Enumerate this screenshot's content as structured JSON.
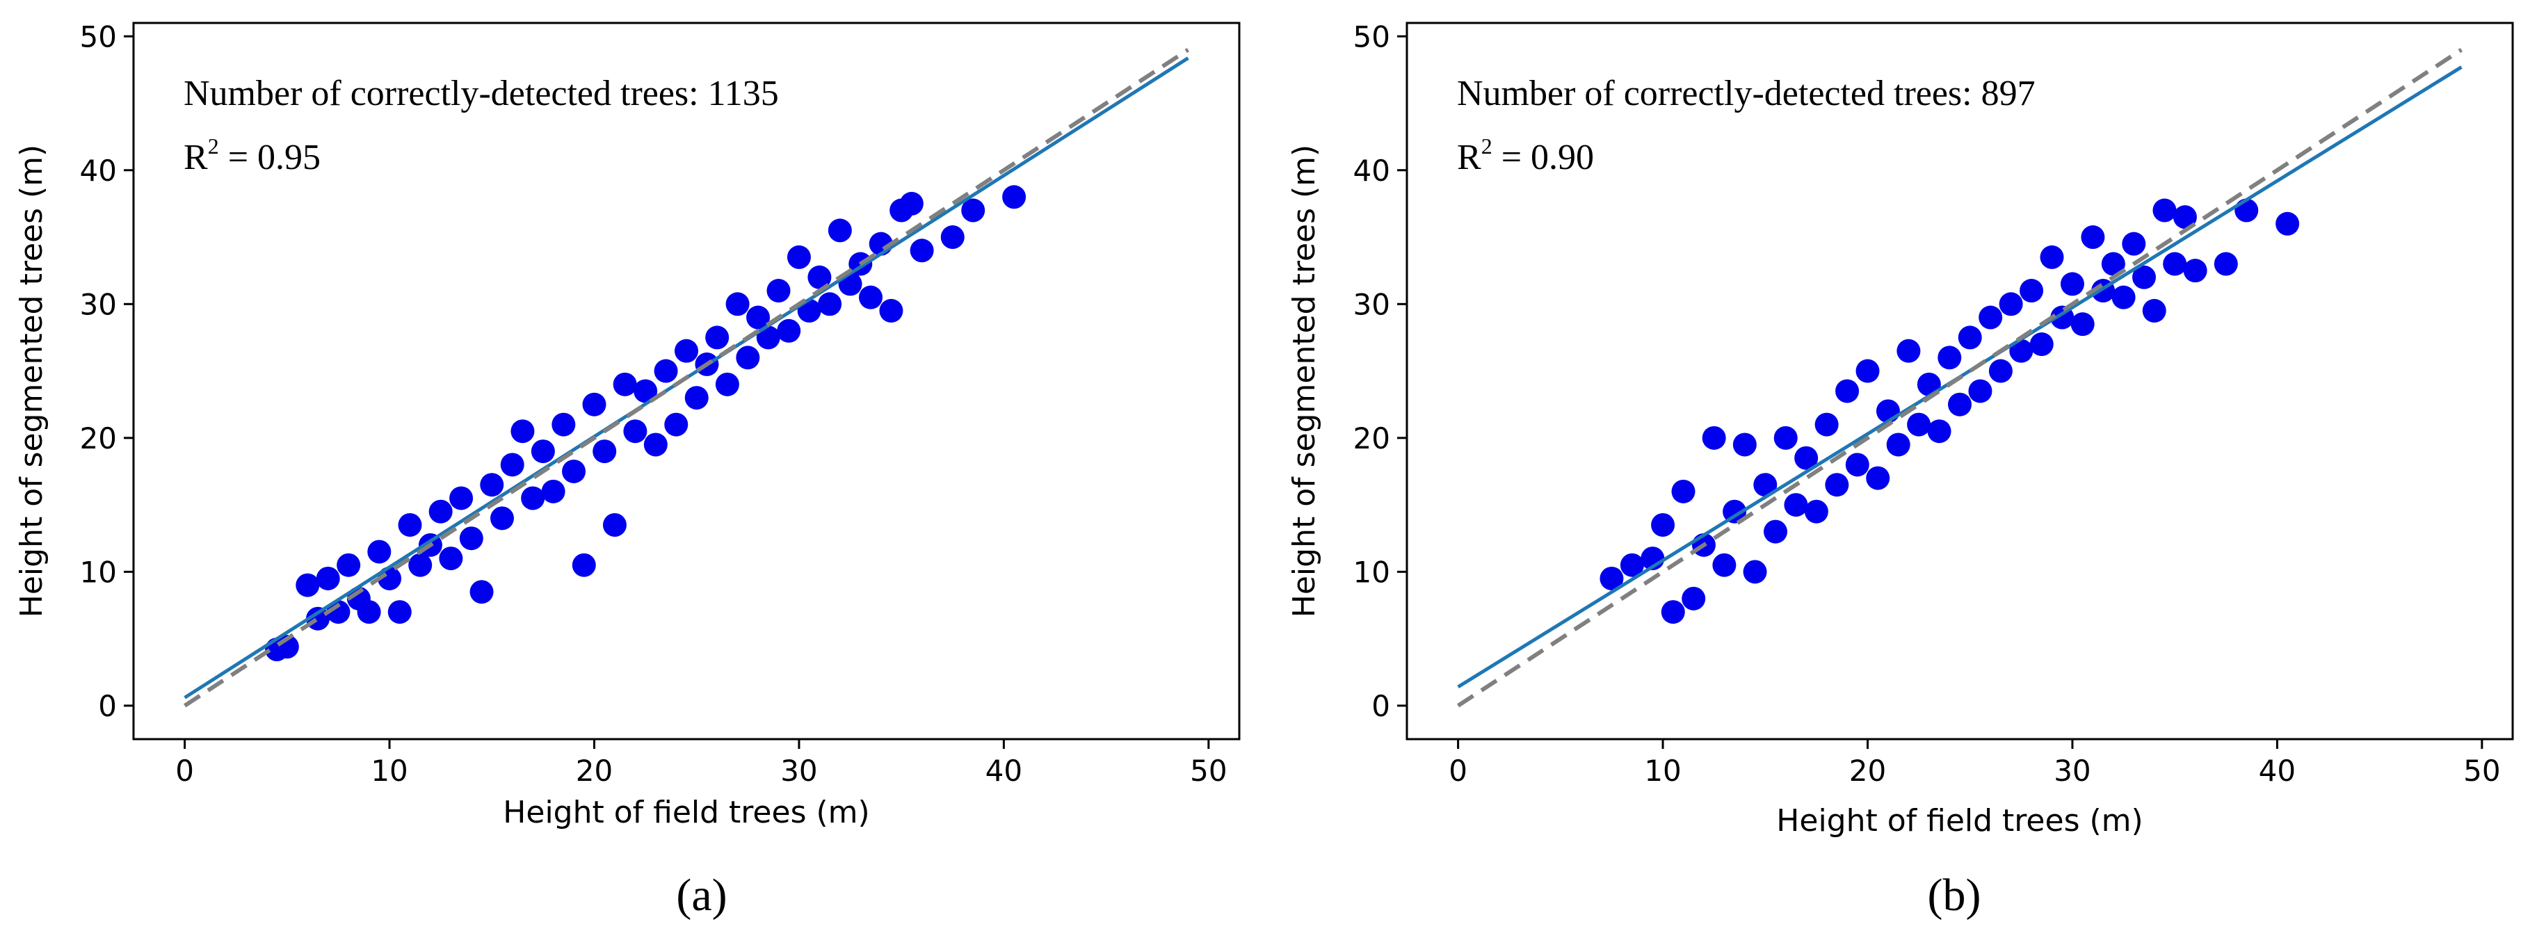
{
  "figure": {
    "colors": {
      "points": "#0000ee",
      "fit_line": "#1f77b4",
      "identity_line": "#808080",
      "axes": "#000000"
    }
  },
  "chart_data": [
    {
      "id": "a",
      "type": "scatter",
      "caption": "(a)",
      "xlabel": "Height of field trees (m)",
      "ylabel": "Height of segmented trees (m)",
      "xlim": [
        -2.5,
        51.5
      ],
      "ylim": [
        -2.5,
        51
      ],
      "xticks": [
        0,
        10,
        20,
        30,
        40,
        50
      ],
      "yticks": [
        0,
        10,
        20,
        30,
        40,
        50
      ],
      "annotation_count": "Number of correctly-detected trees: 1135",
      "annotation_r2_prefix": "R",
      "annotation_r2_sup": "2",
      "annotation_r2_value": " = 0.95",
      "fit_line": {
        "slope": 0.975,
        "intercept": 0.6
      },
      "identity_line": {
        "slope": 1.0,
        "intercept": 0.0
      },
      "x_range": [
        0,
        49
      ],
      "points": [
        [
          4.5,
          4.2
        ],
        [
          5.0,
          4.4
        ],
        [
          6.0,
          9.0
        ],
        [
          6.5,
          6.5
        ],
        [
          7.0,
          9.5
        ],
        [
          7.5,
          7.0
        ],
        [
          8.0,
          10.5
        ],
        [
          8.5,
          8.0
        ],
        [
          9.0,
          7.0
        ],
        [
          9.5,
          11.5
        ],
        [
          10.0,
          9.5
        ],
        [
          10.5,
          7.0
        ],
        [
          11.0,
          13.5
        ],
        [
          11.5,
          10.5
        ],
        [
          12.0,
          12.0
        ],
        [
          12.5,
          14.5
        ],
        [
          13.0,
          11.0
        ],
        [
          13.5,
          15.5
        ],
        [
          14.0,
          12.5
        ],
        [
          14.5,
          8.5
        ],
        [
          15.0,
          16.5
        ],
        [
          15.5,
          14.0
        ],
        [
          16.0,
          18.0
        ],
        [
          16.5,
          20.5
        ],
        [
          17.0,
          15.5
        ],
        [
          17.5,
          19.0
        ],
        [
          18.0,
          16.0
        ],
        [
          18.5,
          21.0
        ],
        [
          19.0,
          17.5
        ],
        [
          19.5,
          10.5
        ],
        [
          20.0,
          22.5
        ],
        [
          20.5,
          19.0
        ],
        [
          21.0,
          13.5
        ],
        [
          21.5,
          24.0
        ],
        [
          22.0,
          20.5
        ],
        [
          22.5,
          23.5
        ],
        [
          23.0,
          19.5
        ],
        [
          23.5,
          25.0
        ],
        [
          24.0,
          21.0
        ],
        [
          24.5,
          26.5
        ],
        [
          25.0,
          23.0
        ],
        [
          25.5,
          25.5
        ],
        [
          26.0,
          27.5
        ],
        [
          26.5,
          24.0
        ],
        [
          27.0,
          30.0
        ],
        [
          27.5,
          26.0
        ],
        [
          28.0,
          29.0
        ],
        [
          28.5,
          27.5
        ],
        [
          29.0,
          31.0
        ],
        [
          29.5,
          28.0
        ],
        [
          30.0,
          33.5
        ],
        [
          30.5,
          29.5
        ],
        [
          31.0,
          32.0
        ],
        [
          31.5,
          30.0
        ],
        [
          32.0,
          35.5
        ],
        [
          32.5,
          31.5
        ],
        [
          33.0,
          33.0
        ],
        [
          33.5,
          30.5
        ],
        [
          34.0,
          34.5
        ],
        [
          34.5,
          29.5
        ],
        [
          35.0,
          37.0
        ],
        [
          35.5,
          37.5
        ],
        [
          36.0,
          34.0
        ],
        [
          37.5,
          35.0
        ],
        [
          38.5,
          37.0
        ],
        [
          40.5,
          38.0
        ]
      ]
    },
    {
      "id": "b",
      "type": "scatter",
      "caption": "(b)",
      "xlabel": "Height of field trees (m)",
      "ylabel": "Height of segmented trees (m)",
      "xlim": [
        -2.5,
        51.5
      ],
      "ylim": [
        -2.5,
        51
      ],
      "xticks": [
        0,
        10,
        20,
        30,
        40,
        50
      ],
      "yticks": [
        0,
        10,
        20,
        30,
        40,
        50
      ],
      "annotation_count": "Number of correctly-detected trees: 897",
      "annotation_r2_prefix": "R",
      "annotation_r2_sup": "2",
      "annotation_r2_value": " = 0.90",
      "fit_line": {
        "slope": 0.945,
        "intercept": 1.4
      },
      "identity_line": {
        "slope": 1.0,
        "intercept": 0.0
      },
      "x_range": [
        0,
        49
      ],
      "points": [
        [
          7.5,
          9.5
        ],
        [
          8.5,
          10.5
        ],
        [
          9.5,
          11.0
        ],
        [
          10.0,
          13.5
        ],
        [
          10.5,
          7.0
        ],
        [
          11.0,
          16.0
        ],
        [
          11.5,
          8.0
        ],
        [
          12.0,
          12.0
        ],
        [
          12.5,
          20.0
        ],
        [
          13.0,
          10.5
        ],
        [
          13.5,
          14.5
        ],
        [
          14.0,
          19.5
        ],
        [
          14.5,
          10.0
        ],
        [
          15.0,
          16.5
        ],
        [
          15.5,
          13.0
        ],
        [
          16.0,
          20.0
        ],
        [
          16.5,
          15.0
        ],
        [
          17.0,
          18.5
        ],
        [
          17.5,
          14.5
        ],
        [
          18.0,
          21.0
        ],
        [
          18.5,
          16.5
        ],
        [
          19.0,
          23.5
        ],
        [
          19.5,
          18.0
        ],
        [
          20.0,
          25.0
        ],
        [
          20.5,
          17.0
        ],
        [
          21.0,
          22.0
        ],
        [
          21.5,
          19.5
        ],
        [
          22.0,
          26.5
        ],
        [
          22.5,
          21.0
        ],
        [
          23.0,
          24.0
        ],
        [
          23.5,
          20.5
        ],
        [
          24.0,
          26.0
        ],
        [
          24.5,
          22.5
        ],
        [
          25.0,
          27.5
        ],
        [
          25.5,
          23.5
        ],
        [
          26.0,
          29.0
        ],
        [
          26.5,
          25.0
        ],
        [
          27.0,
          30.0
        ],
        [
          27.5,
          26.5
        ],
        [
          28.0,
          31.0
        ],
        [
          28.5,
          27.0
        ],
        [
          29.0,
          33.5
        ],
        [
          29.5,
          29.0
        ],
        [
          30.0,
          31.5
        ],
        [
          30.5,
          28.5
        ],
        [
          31.0,
          35.0
        ],
        [
          31.5,
          31.0
        ],
        [
          32.0,
          33.0
        ],
        [
          32.5,
          30.5
        ],
        [
          33.0,
          34.5
        ],
        [
          33.5,
          32.0
        ],
        [
          34.0,
          29.5
        ],
        [
          34.5,
          37.0
        ],
        [
          35.0,
          33.0
        ],
        [
          35.5,
          36.5
        ],
        [
          36.0,
          32.5
        ],
        [
          37.5,
          33.0
        ],
        [
          38.5,
          37.0
        ],
        [
          40.5,
          36.0
        ]
      ]
    }
  ]
}
